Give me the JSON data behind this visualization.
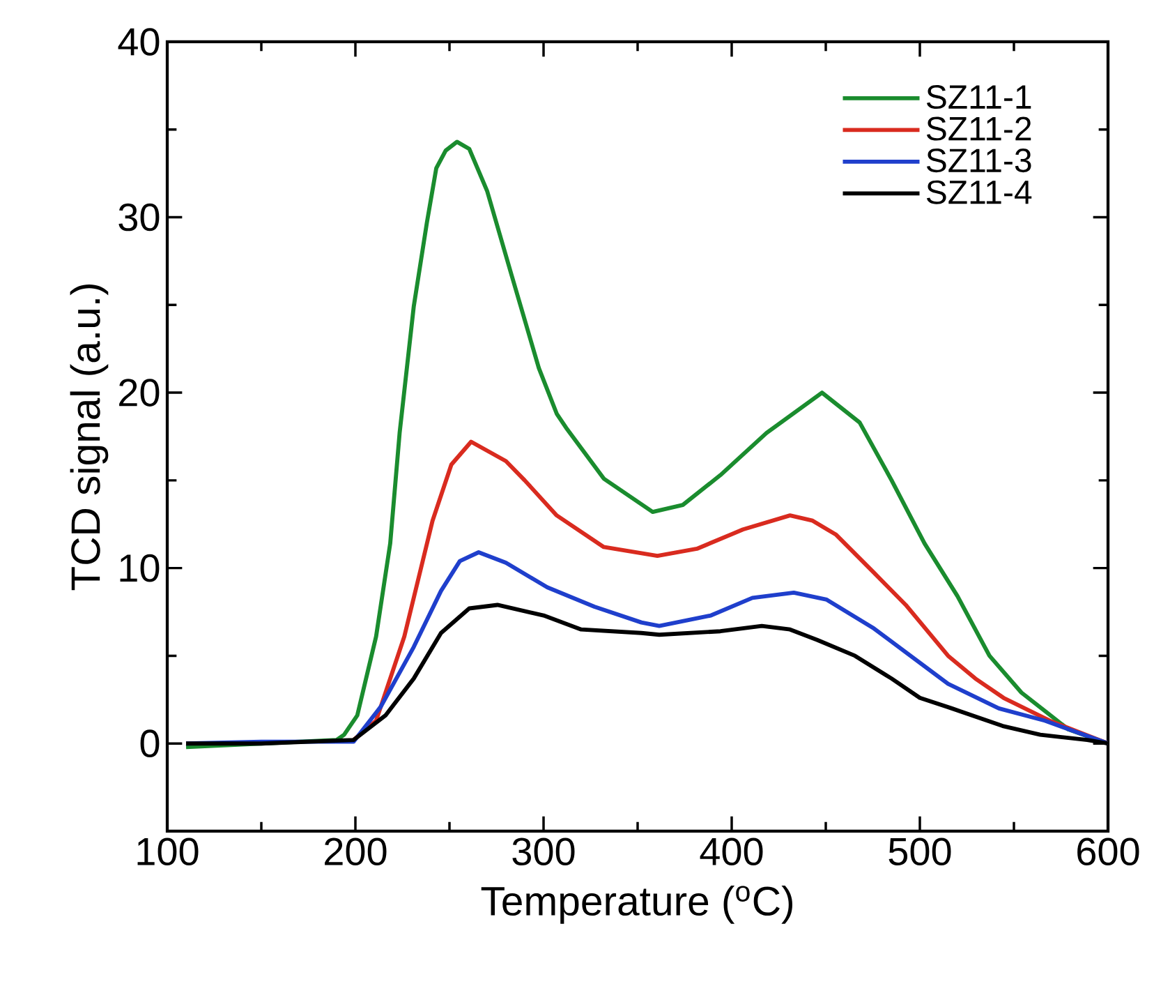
{
  "chart_data": {
    "type": "line",
    "xlabel": "Temperature ($^{o}$C)",
    "ylabel": "TCD signal (a.u.)",
    "xlim": [
      100,
      600
    ],
    "ylim": [
      -5,
      40
    ],
    "xticks": [
      100,
      200,
      300,
      400,
      500,
      600
    ],
    "yticks": [
      0,
      10,
      20,
      30,
      40
    ],
    "legend": "top right",
    "series": [
      {
        "name": "SZ11-1",
        "color": "#1a8c2e",
        "x": [
          110,
          150,
          190,
          194,
          201,
          211,
          218.5,
          223.5,
          231,
          238,
          243,
          248,
          254,
          260.5,
          270,
          283,
          297.5,
          307,
          312,
          332,
          358,
          374,
          394,
          418.5,
          448,
          468,
          485,
          502.5,
          520,
          537,
          554,
          579,
          600
        ],
        "values": [
          -0.2,
          0,
          0.2,
          0.5,
          1.6,
          6.1,
          11.4,
          17.7,
          24.9,
          29.7,
          32.8,
          33.8,
          34.3,
          33.9,
          31.5,
          26.7,
          21.4,
          18.8,
          18.0,
          15.1,
          13.2,
          13.6,
          15.3,
          17.7,
          20.0,
          18.3,
          15.0,
          11.4,
          8.4,
          5.0,
          2.9,
          0.8,
          0
        ]
      },
      {
        "name": "SZ11-2",
        "color": "#d92b1f",
        "x": [
          199,
          211,
          226,
          241,
          251,
          261.5,
          280,
          290,
          307,
          332,
          360.5,
          381.5,
          406,
          431,
          443,
          455.5,
          475,
          492.5,
          515,
          529.5,
          544.5,
          569,
          600
        ],
        "values": [
          0.2,
          1.3,
          6.1,
          12.7,
          15.9,
          17.2,
          16.1,
          15.0,
          13.0,
          11.2,
          10.7,
          11.1,
          12.2,
          13.0,
          12.7,
          11.9,
          9.8,
          7.9,
          5.0,
          3.7,
          2.6,
          1.3,
          0
        ]
      },
      {
        "name": "SZ11-3",
        "color": "#1f3fcc",
        "x": [
          110,
          150,
          199,
          213.5,
          231,
          245.5,
          255.5,
          265.5,
          280,
          302,
          327,
          352,
          361.5,
          389,
          411,
          433,
          450.5,
          475,
          495,
          515,
          542,
          566.5,
          600
        ],
        "values": [
          0,
          0.1,
          0.1,
          2.1,
          5.5,
          8.7,
          10.4,
          10.9,
          10.3,
          8.9,
          7.8,
          6.9,
          6.7,
          7.3,
          8.3,
          8.6,
          8.2,
          6.6,
          5.0,
          3.4,
          2.0,
          1.3,
          0
        ]
      },
      {
        "name": "SZ11-4",
        "color": "#000000",
        "x": [
          110,
          150,
          199,
          216,
          231,
          245.5,
          260.5,
          275.5,
          300,
          320,
          352,
          361.5,
          394,
          416,
          431,
          445.5,
          465.5,
          485,
          500,
          517,
          544,
          564,
          589,
          600
        ],
        "values": [
          0,
          0,
          0.2,
          1.6,
          3.7,
          6.3,
          7.7,
          7.9,
          7.3,
          6.5,
          6.3,
          6.2,
          6.4,
          6.7,
          6.5,
          5.9,
          5.0,
          3.7,
          2.6,
          2.0,
          1.0,
          0.5,
          0.2,
          0
        ]
      }
    ]
  }
}
